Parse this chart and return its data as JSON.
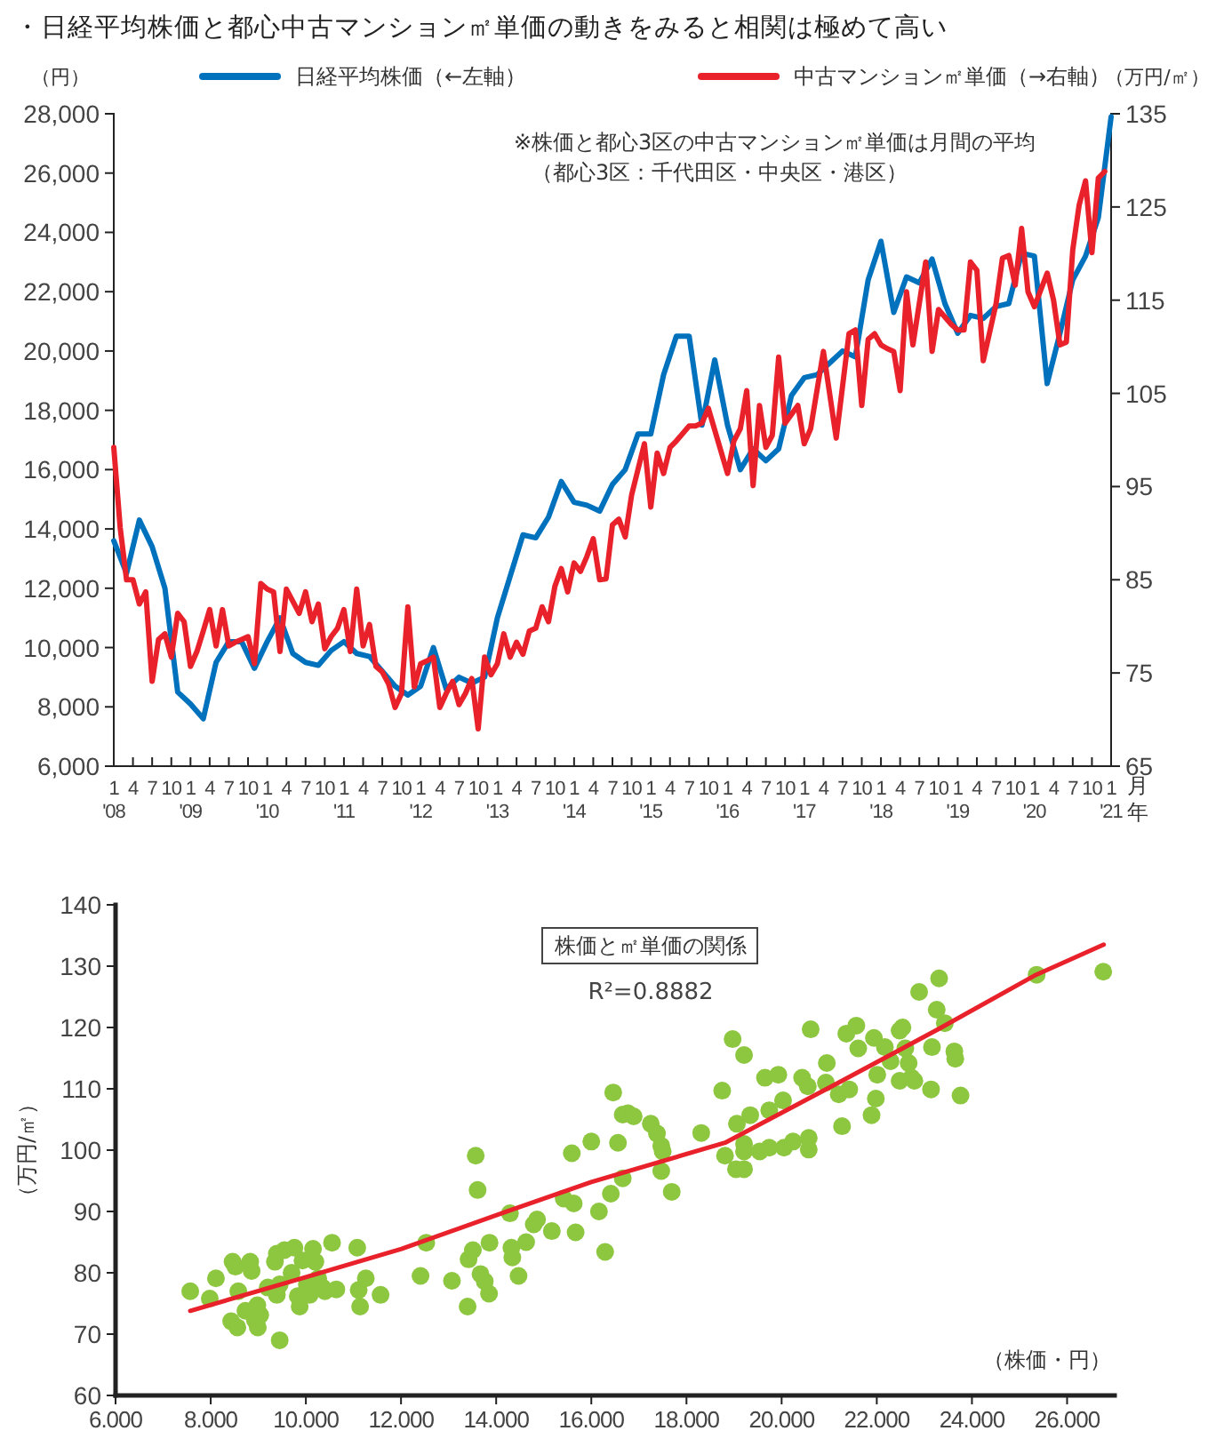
{
  "chart_data": [
    {
      "type": "line",
      "title": "・日経平均株価と都心中古マンション㎡単価の動きをみると相関は極めて高い",
      "ylabel": "（円）",
      "y2label": "（万円/㎡）",
      "xlabel": "月年",
      "legend": "top",
      "annotations": [
        "※株価と都心3区の中古マンション㎡単価は月間の平均",
        "（都心3区：千代田区・中央区・港区）"
      ],
      "xlim": [
        "2008-01",
        "2021-01"
      ],
      "xticks": [
        {
          "value": "2008-01",
          "label": "1\n'08"
        },
        {
          "value": "2008-04",
          "label": "4"
        },
        {
          "value": "2008-07",
          "label": "7"
        },
        {
          "value": "2008-10",
          "label": "10"
        },
        {
          "value": "2009-01",
          "label": "1\n'09"
        },
        {
          "value": "2009-04",
          "label": "4"
        },
        {
          "value": "2009-07",
          "label": "7"
        },
        {
          "value": "2009-10",
          "label": "10"
        },
        {
          "value": "2010-01",
          "label": "1\n'10"
        },
        {
          "value": "2010-04",
          "label": "4"
        },
        {
          "value": "2010-07",
          "label": "7"
        },
        {
          "value": "2010-10",
          "label": "10"
        },
        {
          "value": "2011-01",
          "label": "1\n'11"
        },
        {
          "value": "2011-04",
          "label": "4"
        },
        {
          "value": "2011-07",
          "label": "7"
        },
        {
          "value": "2011-10",
          "label": "10"
        },
        {
          "value": "2012-01",
          "label": "1\n'12"
        },
        {
          "value": "2012-04",
          "label": "4"
        },
        {
          "value": "2012-07",
          "label": "7"
        },
        {
          "value": "2012-10",
          "label": "10"
        },
        {
          "value": "2013-01",
          "label": "1\n'13"
        },
        {
          "value": "2013-04",
          "label": "4"
        },
        {
          "value": "2013-07",
          "label": "7"
        },
        {
          "value": "2013-10",
          "label": "10"
        },
        {
          "value": "2014-01",
          "label": "1\n'14"
        },
        {
          "value": "2014-04",
          "label": "4"
        },
        {
          "value": "2014-07",
          "label": "7"
        },
        {
          "value": "2014-10",
          "label": "10"
        },
        {
          "value": "2015-01",
          "label": "1\n'15"
        },
        {
          "value": "2015-04",
          "label": "4"
        },
        {
          "value": "2015-07",
          "label": "7"
        },
        {
          "value": "2015-10",
          "label": "10"
        },
        {
          "value": "2016-01",
          "label": "1\n'16"
        },
        {
          "value": "2016-04",
          "label": "4"
        },
        {
          "value": "2016-07",
          "label": "7"
        },
        {
          "value": "2016-10",
          "label": "10"
        },
        {
          "value": "2017-01",
          "label": "1\n'17"
        },
        {
          "value": "2017-04",
          "label": "4"
        },
        {
          "value": "2017-07",
          "label": "7"
        },
        {
          "value": "2017-10",
          "label": "10"
        },
        {
          "value": "2018-01",
          "label": "1\n'18"
        },
        {
          "value": "2018-04",
          "label": "4"
        },
        {
          "value": "2018-07",
          "label": "7"
        },
        {
          "value": "2018-10",
          "label": "10"
        },
        {
          "value": "2019-01",
          "label": "1\n'19"
        },
        {
          "value": "2019-04",
          "label": "4"
        },
        {
          "value": "2019-07",
          "label": "7"
        },
        {
          "value": "2019-10",
          "label": "10"
        },
        {
          "value": "2020-01",
          "label": "1\n'20"
        },
        {
          "value": "2020-04",
          "label": "4"
        },
        {
          "value": "2020-07",
          "label": "7"
        },
        {
          "value": "2020-10",
          "label": "10"
        },
        {
          "value": "2021-01",
          "label": "1\n'21"
        }
      ],
      "ylim": [
        6000,
        28000
      ],
      "yticks": [
        {
          "value": 6000,
          "label": "6,000"
        },
        {
          "value": 8000,
          "label": "8,000"
        },
        {
          "value": 10000,
          "label": "10,000"
        },
        {
          "value": 12000,
          "label": "12,000"
        },
        {
          "value": 14000,
          "label": "14,000"
        },
        {
          "value": 16000,
          "label": "16,000"
        },
        {
          "value": 18000,
          "label": "18,000"
        },
        {
          "value": 20000,
          "label": "20,000"
        },
        {
          "value": 22000,
          "label": "22,000"
        },
        {
          "value": 24000,
          "label": "24,000"
        },
        {
          "value": 26000,
          "label": "26,000"
        },
        {
          "value": 28000,
          "label": "28,000"
        }
      ],
      "y2lim": [
        65,
        135
      ],
      "y2ticks": [
        65,
        75,
        85,
        95,
        105,
        115,
        125,
        135
      ],
      "series": [
        {
          "name": "日経平均株価（←左軸）",
          "color": "#0071bc",
          "x": [
            "2008-01",
            "2008-03",
            "2008-05",
            "2008-07",
            "2008-09",
            "2008-11",
            "2009-01",
            "2009-03",
            "2009-05",
            "2009-07",
            "2009-09",
            "2009-11",
            "2010-01",
            "2010-03",
            "2010-05",
            "2010-07",
            "2010-09",
            "2010-11",
            "2011-01",
            "2011-03",
            "2011-05",
            "2011-07",
            "2011-09",
            "2011-11",
            "2012-01",
            "2012-03",
            "2012-05",
            "2012-07",
            "2012-09",
            "2012-11",
            "2013-01",
            "2013-03",
            "2013-05",
            "2013-07",
            "2013-09",
            "2013-11",
            "2014-01",
            "2014-03",
            "2014-05",
            "2014-07",
            "2014-09",
            "2014-11",
            "2015-01",
            "2015-03",
            "2015-05",
            "2015-07",
            "2015-09",
            "2015-11",
            "2016-01",
            "2016-03",
            "2016-05",
            "2016-07",
            "2016-09",
            "2016-11",
            "2017-01",
            "2017-03",
            "2017-05",
            "2017-07",
            "2017-09",
            "2017-11",
            "2018-01",
            "2018-03",
            "2018-05",
            "2018-07",
            "2018-09",
            "2018-11",
            "2019-01",
            "2019-03",
            "2019-05",
            "2019-07",
            "2019-09",
            "2019-11",
            "2020-01",
            "2020-03",
            "2020-05",
            "2020-07",
            "2020-09",
            "2020-11",
            "2021-01"
          ],
          "values": [
            13600,
            12500,
            14300,
            13400,
            12000,
            8500,
            8100,
            7600,
            9500,
            10200,
            10200,
            9300,
            10200,
            11000,
            9800,
            9500,
            9400,
            9900,
            10200,
            9800,
            9700,
            9200,
            8700,
            8400,
            8700,
            10000,
            8600,
            9000,
            8800,
            9000,
            11000,
            12400,
            13800,
            13700,
            14400,
            15600,
            14900,
            14800,
            14600,
            15500,
            16000,
            17200,
            17200,
            19200,
            20500,
            20500,
            17500,
            19700,
            17500,
            16000,
            16700,
            16300,
            16700,
            18500,
            19100,
            19200,
            19600,
            20000,
            19800,
            22400,
            23700,
            21300,
            22500,
            22300,
            23100,
            21600,
            20600,
            21200,
            21100,
            21500,
            21600,
            23300,
            23200,
            18900,
            20600,
            22400,
            23200,
            24500,
            27900
          ]
        },
        {
          "name": "中古マンション㎡単価（→右軸）",
          "color": "#e8212a",
          "axis": "y2",
          "x": [
            "2008-01",
            "2008-02",
            "2008-03",
            "2008-04",
            "2008-05",
            "2008-06",
            "2008-07",
            "2008-08",
            "2008-09",
            "2008-10",
            "2008-11",
            "2008-12",
            "2009-01",
            "2009-02",
            "2009-03",
            "2009-04",
            "2009-05",
            "2009-06",
            "2009-07",
            "2009-08",
            "2009-09",
            "2009-10",
            "2009-11",
            "2009-12",
            "2010-01",
            "2010-02",
            "2010-03",
            "2010-04",
            "2010-05",
            "2010-06",
            "2010-07",
            "2010-08",
            "2010-09",
            "2010-10",
            "2010-11",
            "2010-12",
            "2011-01",
            "2011-02",
            "2011-03",
            "2011-04",
            "2011-05",
            "2011-06",
            "2011-07",
            "2011-08",
            "2011-09",
            "2011-10",
            "2011-11",
            "2011-12",
            "2012-01",
            "2012-02",
            "2012-03",
            "2012-04",
            "2012-05",
            "2012-06",
            "2012-07",
            "2012-08",
            "2012-09",
            "2012-10",
            "2012-11",
            "2012-12",
            "2013-01",
            "2013-02",
            "2013-03",
            "2013-04",
            "2013-05",
            "2013-06",
            "2013-07",
            "2013-08",
            "2013-09",
            "2013-10",
            "2013-11",
            "2013-12",
            "2014-01",
            "2014-02",
            "2014-03",
            "2014-04",
            "2014-05",
            "2014-06",
            "2014-07",
            "2014-08",
            "2014-09",
            "2014-10",
            "2014-12",
            "2015-01",
            "2015-02",
            "2015-03",
            "2015-04",
            "2015-05",
            "2015-07",
            "2015-08",
            "2015-09",
            "2015-10",
            "2016-01",
            "2016-02",
            "2016-03",
            "2016-04",
            "2016-05",
            "2016-06",
            "2016-07",
            "2016-08",
            "2016-09",
            "2016-10",
            "2016-12",
            "2017-01",
            "2017-02",
            "2017-04",
            "2017-06",
            "2017-08",
            "2017-09",
            "2017-10",
            "2017-11",
            "2017-12",
            "2018-01",
            "2018-02",
            "2018-03",
            "2018-04",
            "2018-05",
            "2018-06",
            "2018-08",
            "2018-09",
            "2018-10",
            "2018-12",
            "2019-01",
            "2019-02",
            "2019-03",
            "2019-04",
            "2019-05",
            "2019-07",
            "2019-08",
            "2019-09",
            "2019-10",
            "2019-11",
            "2019-12",
            "2020-01",
            "2020-03",
            "2020-04",
            "2020-05",
            "2020-06",
            "2020-07",
            "2020-08",
            "2020-09",
            "2020-10",
            "2020-11",
            "2020-12"
          ],
          "values": [
            99.2,
            90.6,
            85,
            85,
            82.4,
            83.7,
            74.1,
            78.6,
            79.2,
            76.7,
            81.4,
            80.5,
            75.7,
            77.3,
            79.5,
            81.8,
            77.9,
            81.8,
            77.9,
            78.3,
            78.6,
            78.9,
            76,
            84.6,
            84,
            83.7,
            77.3,
            84,
            82.7,
            81.4,
            83.7,
            80.5,
            82.4,
            77.6,
            78.9,
            79.8,
            81.8,
            77.3,
            84,
            77.9,
            80.2,
            75.7,
            75.1,
            73.8,
            71.3,
            72.8,
            82.1,
            73.5,
            76,
            76.3,
            76.7,
            71.3,
            72.8,
            74.1,
            71.6,
            72.8,
            74.4,
            69,
            76.7,
            74.8,
            76,
            79.2,
            76.7,
            78.3,
            77,
            79.5,
            79.8,
            82.1,
            80.5,
            84.3,
            86.2,
            83.7,
            86.8,
            85.9,
            87.5,
            89.4,
            85,
            85.1,
            90.9,
            91.5,
            89.6,
            94.1,
            99.6,
            92.8,
            98.6,
            96.4,
            99.2,
            99.9,
            101.5,
            101.5,
            101.8,
            103.4,
            96.4,
            99.9,
            101.2,
            105.3,
            95.1,
            103.7,
            99.2,
            100.5,
            108.9,
            101.8,
            103.7,
            99.6,
            101.2,
            109.5,
            100.2,
            111.4,
            111.8,
            103.7,
            110.8,
            111.4,
            110.2,
            109.8,
            109.5,
            105.3,
            115.9,
            110.2,
            119.1,
            109.5,
            114,
            112.4,
            111.8,
            111.8,
            119.1,
            118.2,
            108.5,
            114.6,
            119.5,
            119.8,
            116.6,
            122.7,
            115.9,
            114.3,
            117.9,
            115,
            110.2,
            110.5,
            120.4,
            125.2,
            127.8,
            120.1,
            128.1,
            128.8
          ]
        }
      ]
    },
    {
      "type": "scatter",
      "ylabel": "（万円/㎡）",
      "xlabel": "（株価・円）",
      "annotations": [
        "株価と㎡単価の関係",
        "R²=0.8882"
      ],
      "xlim": [
        6,
        27
      ],
      "xticks": [
        {
          "value": 6,
          "label": "6.000"
        },
        {
          "value": 8,
          "label": "8.000"
        },
        {
          "value": 10,
          "label": "10.000"
        },
        {
          "value": 12,
          "label": "12.000"
        },
        {
          "value": 14,
          "label": "14.000"
        },
        {
          "value": 16,
          "label": "16.000"
        },
        {
          "value": 18,
          "label": "18.000"
        },
        {
          "value": 20,
          "label": "20.000"
        },
        {
          "value": 22,
          "label": "22.000"
        },
        {
          "value": 24,
          "label": "24.000"
        },
        {
          "value": 26,
          "label": "26.000"
        }
      ],
      "ylim": [
        60,
        140
      ],
      "yticks": [
        60,
        70,
        80,
        90,
        100,
        110,
        120,
        130,
        140
      ],
      "series": [
        {
          "color": "#8dc63f",
          "x": [
            7.57,
            7.98,
            8.11,
            8.46,
            8.52,
            8.43,
            8.56,
            8.58,
            8.83,
            8.86,
            8.73,
            8.93,
            8.99,
            9.04,
            8.98,
            9.2,
            9.35,
            9.39,
            9.45,
            9.39,
            9.45,
            9.55,
            9.7,
            9.76,
            9.83,
            9.87,
            9.93,
            10.02,
            10.08,
            10.15,
            10.2,
            10.26,
            10.35,
            10.4,
            10.55,
            10.64,
            11.08,
            11.11,
            11.14,
            11.26,
            11.57,
            12.41,
            12.53,
            13.07,
            13.4,
            13.42,
            13.51,
            13.57,
            13.61,
            13.67,
            13.76,
            13.85,
            13.86,
            14.29,
            14.32,
            14.34,
            14.47,
            14.63,
            14.79,
            14.86,
            15.17,
            15.42,
            15.59,
            15.63,
            15.67,
            16,
            16.16,
            16.29,
            16.41,
            16.46,
            16.56,
            16.66,
            16.66,
            16.77,
            16.89,
            17.25,
            17.38,
            17.47,
            17.5,
            17.47,
            17.69,
            18.31,
            18.75,
            18.97,
            19.21,
            18.81,
            19.04,
            19.21,
            19.06,
            19.21,
            19.21,
            19.34,
            19.54,
            19.65,
            19.74,
            19.74,
            19.93,
            20.03,
            20.05,
            20.24,
            20.43,
            20.55,
            20.57,
            20.57,
            20.61,
            20.95,
            20.93,
            21.2,
            21.27,
            21.36,
            21.42,
            21.57,
            21.61,
            21.89,
            21.98,
            21.94,
            22.01,
            22.17,
            22.29,
            22.48,
            22.54,
            22.48,
            22.6,
            22.67,
            22.73,
            22.79,
            22.89,
            23.14,
            23.16,
            23.26,
            23.31,
            23.43,
            23.63,
            23.65,
            23.76,
            25.36,
            26.76
          ],
          "values": [
            77.0,
            75.8,
            79.1,
            81.8,
            81.0,
            72.1,
            71.1,
            77.0,
            81.8,
            80.3,
            73.8,
            72.3,
            71.1,
            73.1,
            74.7,
            77.6,
            81.8,
            83.1,
            78.1,
            76.4,
            69.0,
            83.7,
            80.0,
            84.1,
            76.2,
            74.5,
            82.0,
            78.1,
            76.4,
            83.9,
            81.8,
            79.1,
            77.6,
            77.0,
            84.9,
            77.3,
            84.1,
            77.2,
            74.5,
            79.1,
            76.4,
            79.5,
            84.9,
            78.7,
            74.5,
            82.2,
            83.7,
            99.1,
            93.5,
            79.8,
            78.6,
            76.6,
            84.9,
            89.7,
            84.1,
            82.5,
            79.5,
            85.0,
            87.9,
            88.7,
            86.8,
            92.1,
            99.5,
            91.3,
            86.6,
            101.4,
            90.0,
            83.4,
            92.9,
            109.4,
            101.2,
            105.8,
            95.4,
            106.0,
            105.5,
            104.3,
            102.7,
            100.7,
            99.8,
            96.6,
            93.2,
            102.8,
            109.7,
            118.1,
            115.5,
            99.1,
            96.9,
            96.9,
            104.3,
            101.0,
            99.8,
            105.7,
            99.8,
            111.8,
            106.5,
            100.4,
            112.3,
            108.1,
            100.4,
            101.4,
            111.8,
            110.4,
            102.0,
            100.1,
            119.7,
            114.2,
            111.0,
            109.1,
            103.9,
            119.0,
            109.9,
            120.3,
            116.6,
            105.7,
            108.4,
            118.3,
            112.3,
            116.8,
            114.5,
            119.5,
            120.0,
            111.3,
            116.6,
            114.2,
            111.8,
            111.3,
            125.8,
            109.9,
            116.8,
            122.9,
            128.0,
            120.7,
            116.1,
            114.9,
            108.9,
            128.6,
            129.1
          ]
        },
        {
          "type": "line",
          "color": "#e8212a",
          "x": [
            7.57,
            10,
            12.01,
            14.19,
            16,
            18.81,
            21.05,
            23.29,
            25.35,
            26.77
          ],
          "values": [
            73.8,
            79.3,
            83.9,
            89.9,
            94.8,
            101.2,
            110.4,
            119.7,
            128.6,
            133.5
          ]
        }
      ]
    }
  ]
}
